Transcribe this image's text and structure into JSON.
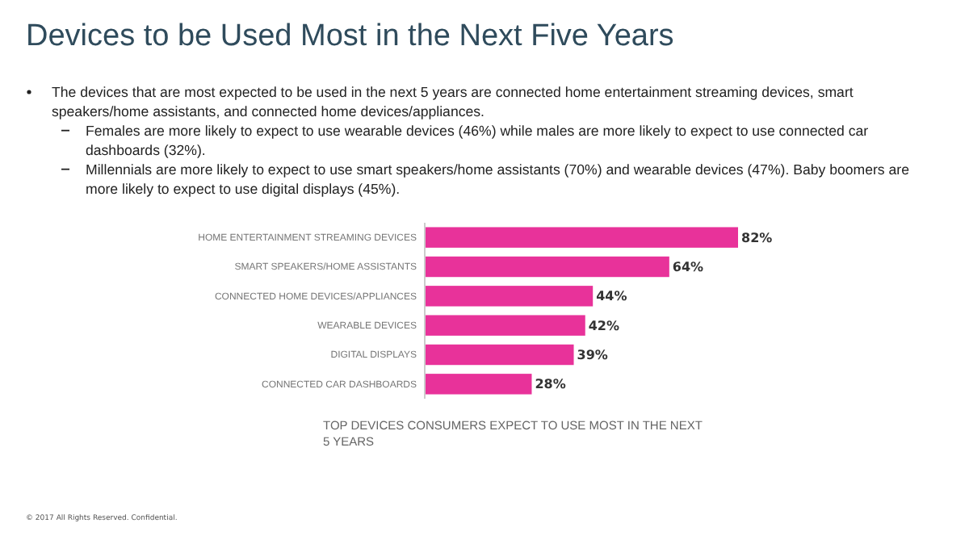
{
  "chart_data": {
    "type": "bar",
    "orientation": "horizontal",
    "data_labels": true,
    "title": "Devices to be Used Most in the Next Five Years",
    "categories": [
      "HOME ENTERTAINMENT STREAMING DEVICES",
      "SMART SPEAKERS/HOME ASSISTANTS",
      "CONNECTED HOME DEVICES/APPLIANCES",
      "WEARABLE DEVICES",
      "DIGITAL DISPLAYS",
      "CONNECTED CAR DASHBOARDS"
    ],
    "series": [
      {
        "color": "#e8329a",
        "values": [
          82,
          64,
          44,
          42,
          39,
          28
        ],
        "value_labels": [
          "82%",
          "64%",
          "44%",
          "42%",
          "39%",
          "28%"
        ]
      }
    ],
    "annotations": [
      "The devices that are most expected to be used in the next 5 years are connected home entertainment streaming devices, smart speakers/home assistants, and connected home devices/appliances.",
      "Females are more likely to expect to use wearable devices (46%) while males are more likely to expect to use connected car dashboards (32%).",
      "Millennials are more likely to expect to use smart speakers/home assistants (70%) and wearable devices (47%). Baby boomers are more likely to expect to use digital displays (45%).",
      "TOP DEVICES CONSUMERS EXPECT TO USE MOST IN THE NEXT 5 YEARS",
      "© 2017 All Rights Reserved. Confidential."
    ]
  }
}
